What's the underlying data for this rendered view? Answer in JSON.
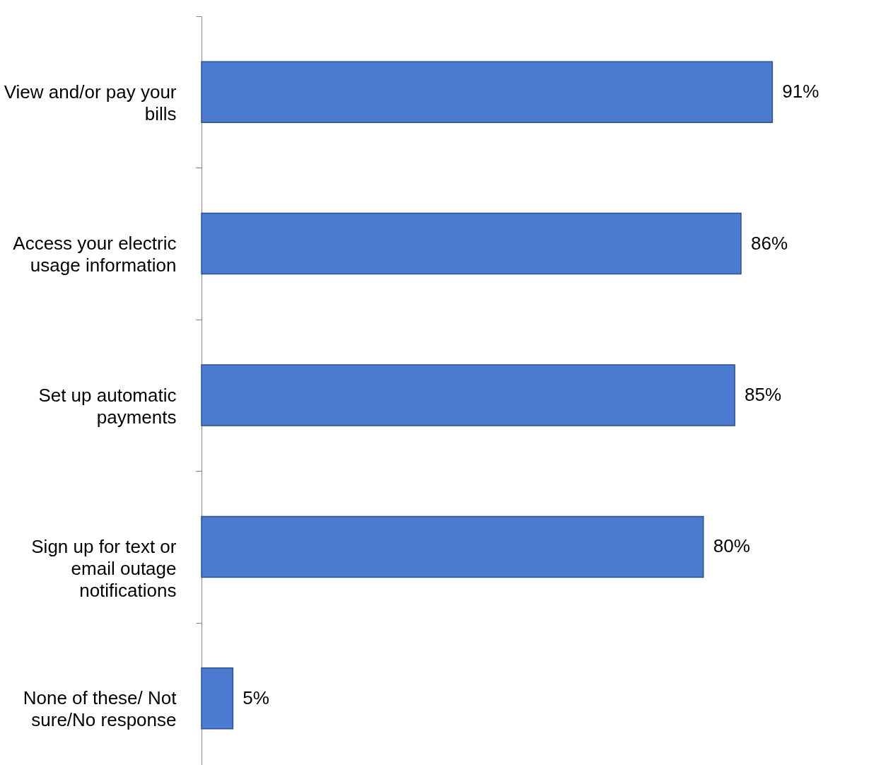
{
  "chart_data": {
    "type": "bar",
    "orientation": "horizontal",
    "categories": [
      "View and/or pay your bills",
      "Access your electric usage information",
      "Set up automatic payments",
      "Sign up for text or email outage notifications",
      "None of these/ Not sure/No response"
    ],
    "values": [
      91,
      86,
      85,
      80,
      5
    ],
    "value_labels": [
      "91%",
      "86%",
      "85%",
      "80%",
      "5%"
    ],
    "color": "#4a7bd0",
    "grid": false
  }
}
